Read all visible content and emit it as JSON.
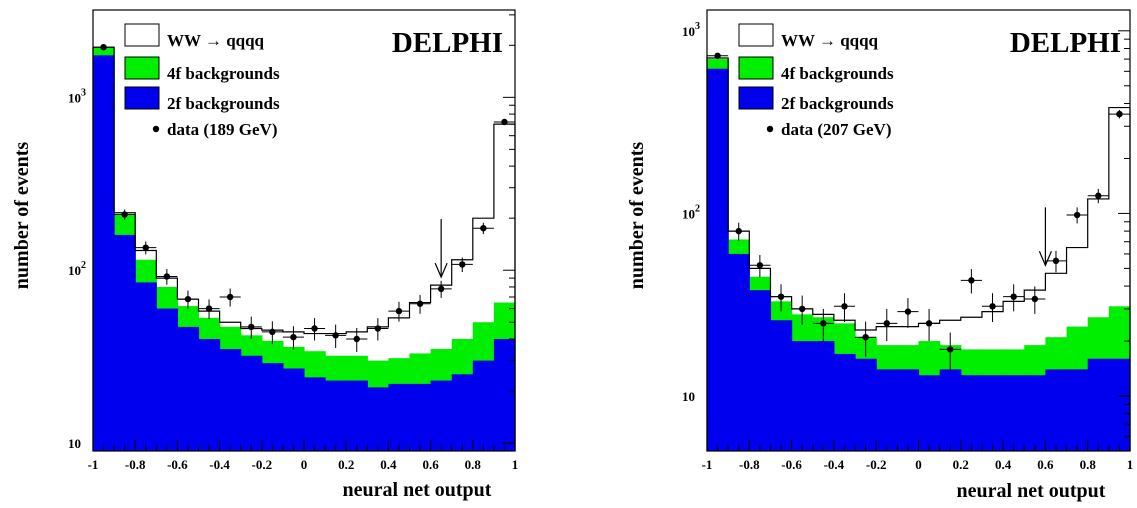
{
  "colors": {
    "two_f": "#0000ee",
    "four_f": "#00ee00",
    "ww": "#ffffff",
    "data": "#000000"
  },
  "chart_data": [
    {
      "type": "histogram",
      "title": "DELPHI",
      "xlabel": "neural net output",
      "ylabel": "number of events",
      "x_scale": "linear",
      "y_scale": "log",
      "xlim": [
        -1,
        1
      ],
      "ylim": [
        9,
        3200
      ],
      "bin_edges": [
        -1,
        -0.9,
        -0.8,
        -0.7,
        -0.6,
        -0.5,
        -0.4,
        -0.3,
        -0.2,
        -0.1,
        0,
        0.1,
        0.2,
        0.3,
        0.4,
        0.5,
        0.6,
        0.7,
        0.8,
        0.9,
        1
      ],
      "x_ticks": [
        {
          "value": -1,
          "label": "-1"
        },
        {
          "value": -0.8,
          "label": "-0.8"
        },
        {
          "value": -0.6,
          "label": "-0.6"
        },
        {
          "value": -0.4,
          "label": "-0.4"
        },
        {
          "value": -0.2,
          "label": "-0.2"
        },
        {
          "value": 0,
          "label": "0"
        },
        {
          "value": 0.2,
          "label": "0.2"
        },
        {
          "value": 0.4,
          "label": "0.4"
        },
        {
          "value": 0.6,
          "label": "0.6"
        },
        {
          "value": 0.8,
          "label": "0.8"
        },
        {
          "value": 1,
          "label": "1"
        }
      ],
      "y_ticks": [
        {
          "value": 10,
          "label": "10"
        },
        {
          "value": 100,
          "label": "10",
          "exp": "2"
        },
        {
          "value": 1000,
          "label": "10",
          "exp": "3"
        }
      ],
      "series": [
        {
          "name": "2f backgrounds",
          "color": "#0000ee",
          "values": [
            1750,
            160,
            85,
            60,
            47,
            40,
            35,
            32,
            29,
            27,
            24,
            23,
            23,
            21,
            22,
            22,
            23,
            25,
            30,
            40
          ]
        },
        {
          "name": "4f backgrounds",
          "color": "#00ee00",
          "values": [
            1950,
            210,
            115,
            80,
            62,
            53,
            47,
            42,
            39,
            36,
            34,
            32,
            32,
            30,
            31,
            33,
            35,
            40,
            50,
            65
          ]
        },
        {
          "name": "WW → qqqq",
          "color": "#ffffff",
          "values": [
            1950,
            215,
            130,
            90,
            68,
            58,
            50,
            46,
            45,
            44,
            43,
            43,
            44,
            47,
            53,
            65,
            82,
            115,
            200,
            700
          ]
        }
      ],
      "data_points": {
        "name": "data (189 GeV)",
        "x": [
          -0.95,
          -0.85,
          -0.75,
          -0.65,
          -0.55,
          -0.45,
          -0.35,
          -0.25,
          -0.15,
          -0.05,
          0.05,
          0.15,
          0.25,
          0.35,
          0.45,
          0.55,
          0.65,
          0.75,
          0.85,
          0.95
        ],
        "y": [
          1950,
          210,
          135,
          92,
          68,
          60,
          70,
          47,
          44,
          41,
          46,
          42,
          40,
          46,
          58,
          64,
          78,
          108,
          175,
          720
        ]
      },
      "arrow_x": 0.65,
      "legend": [
        "WW → qqqq",
        "4f backgrounds",
        "2f backgrounds",
        "data (189 GeV)"
      ]
    },
    {
      "type": "histogram",
      "title": "DELPHI",
      "xlabel": "neural net output",
      "ylabel": "number of events",
      "x_scale": "linear",
      "y_scale": "log",
      "xlim": [
        -1,
        1
      ],
      "ylim": [
        5,
        1300
      ],
      "bin_edges": [
        -1,
        -0.9,
        -0.8,
        -0.7,
        -0.6,
        -0.5,
        -0.4,
        -0.3,
        -0.2,
        -0.1,
        0,
        0.1,
        0.2,
        0.3,
        0.4,
        0.5,
        0.6,
        0.7,
        0.8,
        0.9,
        1
      ],
      "x_ticks": [
        {
          "value": -1,
          "label": "-1"
        },
        {
          "value": -0.8,
          "label": "-0.8"
        },
        {
          "value": -0.6,
          "label": "-0.6"
        },
        {
          "value": -0.4,
          "label": "-0.4"
        },
        {
          "value": -0.2,
          "label": "-0.2"
        },
        {
          "value": 0,
          "label": "0"
        },
        {
          "value": 0.2,
          "label": "0.2"
        },
        {
          "value": 0.4,
          "label": "0.4"
        },
        {
          "value": 0.6,
          "label": "0.6"
        },
        {
          "value": 0.8,
          "label": "0.8"
        },
        {
          "value": 1,
          "label": "1"
        }
      ],
      "y_ticks": [
        {
          "value": 10,
          "label": "10"
        },
        {
          "value": 100,
          "label": "10",
          "exp": "2"
        },
        {
          "value": 1000,
          "label": "10",
          "exp": "3"
        }
      ],
      "series": [
        {
          "name": "2f backgrounds",
          "color": "#0000ee",
          "values": [
            620,
            60,
            38,
            26,
            20,
            20,
            17,
            16,
            14,
            14,
            13,
            14,
            13,
            13,
            13,
            13,
            14,
            14,
            16,
            16
          ]
        },
        {
          "name": "4f backgrounds",
          "color": "#00ee00",
          "values": [
            700,
            72,
            45,
            33,
            28,
            27,
            25,
            21,
            19,
            19,
            20,
            19,
            18,
            18,
            18,
            19,
            21,
            24,
            27,
            31
          ]
        },
        {
          "name": "WW → qqqq",
          "color": "#ffffff",
          "values": [
            710,
            80,
            50,
            35,
            30,
            28,
            26,
            23,
            24,
            24,
            25,
            26,
            27,
            29,
            33,
            38,
            47,
            65,
            120,
            380
          ]
        }
      ],
      "data_points": {
        "name": "data (207 GeV)",
        "x": [
          -0.95,
          -0.85,
          -0.75,
          -0.65,
          -0.55,
          -0.45,
          -0.35,
          -0.25,
          -0.15,
          -0.05,
          0.05,
          0.15,
          0.25,
          0.35,
          0.45,
          0.55,
          0.65,
          0.75,
          0.85,
          0.95
        ],
        "y": [
          730,
          80,
          52,
          35,
          30,
          25,
          31,
          21,
          25,
          29,
          25,
          18,
          43,
          31,
          35,
          34,
          55,
          98,
          125,
          350
        ]
      },
      "arrow_x": 0.6,
      "legend": [
        "WW → qqqq",
        "4f backgrounds",
        "2f backgrounds",
        "data (207 GeV)"
      ]
    }
  ]
}
